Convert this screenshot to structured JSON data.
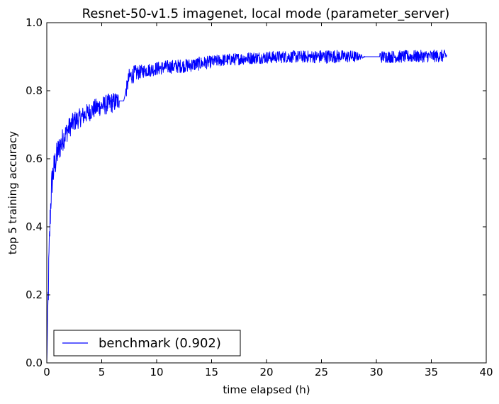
{
  "chart_data": {
    "type": "line",
    "title": "Resnet-50-v1.5 imagenet, local mode (parameter_server)",
    "xlabel": "time elapsed (h)",
    "ylabel": "top 5 training accuracy",
    "xlim": [
      0,
      40
    ],
    "ylim": [
      0.0,
      1.0
    ],
    "xticks": [
      "0",
      "5",
      "10",
      "15",
      "20",
      "25",
      "30",
      "35",
      "40"
    ],
    "yticks": [
      "0.0",
      "0.2",
      "0.4",
      "0.6",
      "0.8",
      "1.0"
    ],
    "grid": false,
    "legend_position": "lower-left",
    "series": [
      {
        "name": "benchmark (0.902)",
        "color": "#0000ff",
        "x": [
          0.0,
          0.1,
          0.2,
          0.3,
          0.4,
          0.5,
          0.7,
          1.0,
          1.5,
          2.0,
          2.5,
          3.0,
          3.5,
          4.0,
          4.5,
          5.0,
          5.5,
          6.0,
          6.5,
          7.0,
          7.3,
          7.5,
          8.0,
          8.5,
          9.0,
          9.5,
          10.0,
          11.0,
          12.0,
          13.0,
          14.0,
          15.0,
          16.0,
          17.0,
          18.0,
          19.0,
          20.0,
          21.0,
          22.0,
          23.0,
          24.0,
          25.0,
          26.0,
          27.0,
          28.0,
          29.0,
          30.0,
          31.0,
          32.0,
          33.0,
          34.0,
          35.0,
          36.0,
          36.4
        ],
        "y": [
          0.0,
          0.15,
          0.3,
          0.42,
          0.5,
          0.54,
          0.58,
          0.62,
          0.66,
          0.69,
          0.71,
          0.72,
          0.73,
          0.74,
          0.75,
          0.755,
          0.76,
          0.765,
          0.77,
          0.77,
          0.81,
          0.84,
          0.85,
          0.855,
          0.86,
          0.862,
          0.865,
          0.87,
          0.872,
          0.875,
          0.88,
          0.885,
          0.89,
          0.892,
          0.895,
          0.897,
          0.898,
          0.899,
          0.9,
          0.9,
          0.9,
          0.9,
          0.901,
          0.901,
          0.9,
          0.9,
          0.9,
          0.9,
          0.9,
          0.901,
          0.901,
          0.902,
          0.902,
          0.902
        ],
        "noise_amplitude": [
          0.0,
          0.06,
          0.06,
          0.05,
          0.05,
          0.05,
          0.045,
          0.04,
          0.035,
          0.03,
          0.03,
          0.028,
          0.028,
          0.028,
          0.028,
          0.028,
          0.03,
          0.03,
          0.028,
          0.0,
          0.025,
          0.025,
          0.025,
          0.02,
          0.02,
          0.02,
          0.02,
          0.02,
          0.02,
          0.02,
          0.02,
          0.018,
          0.018,
          0.018,
          0.018,
          0.018,
          0.018,
          0.018,
          0.018,
          0.018,
          0.018,
          0.02,
          0.02,
          0.018,
          0.018,
          0.0,
          0.018,
          0.018,
          0.018,
          0.018,
          0.018,
          0.018,
          0.018,
          0.018
        ],
        "gaps": [
          [
            6.6,
            7.2
          ],
          [
            29.0,
            30.3
          ]
        ]
      }
    ]
  }
}
